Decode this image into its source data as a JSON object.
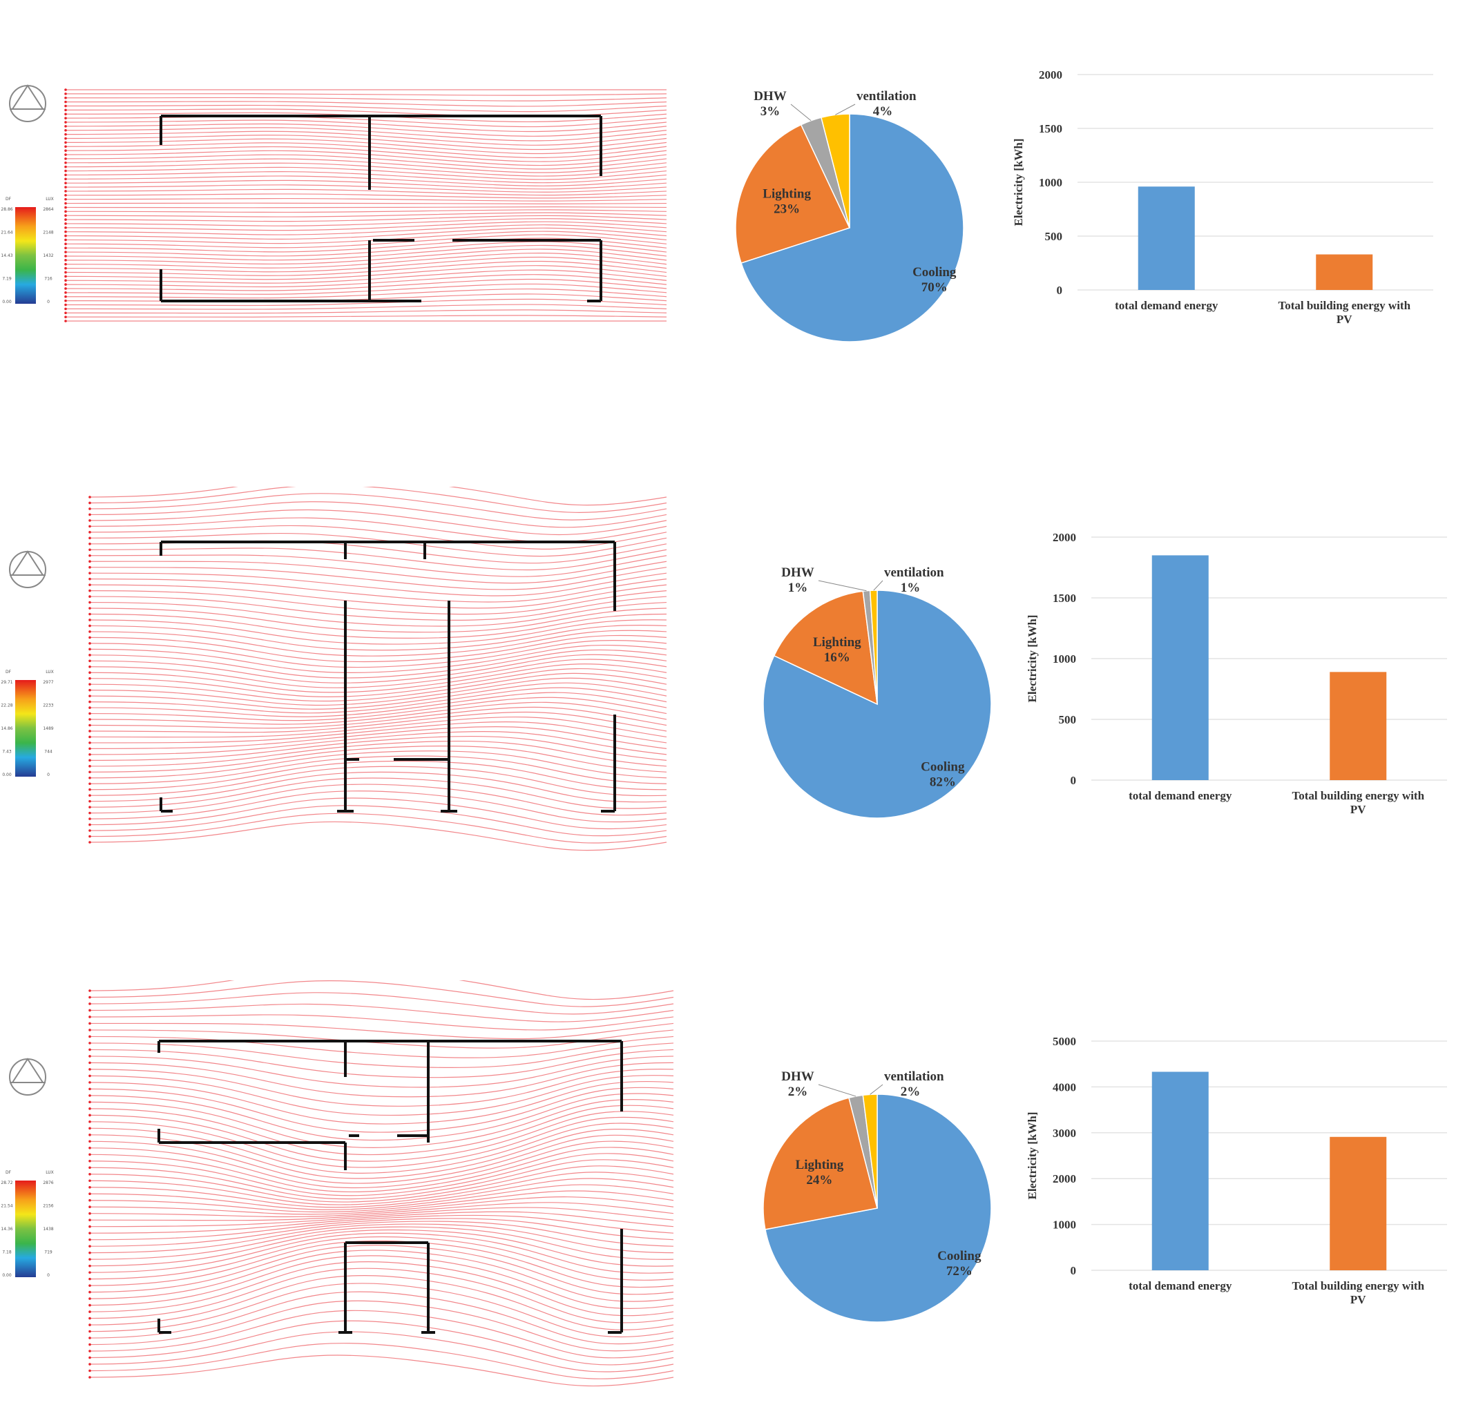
{
  "colors": {
    "cooling": "#5b9bd5",
    "lighting": "#ed7d31",
    "dhw": "#a5a5a5",
    "ventilation": "#ffc000",
    "bar_demand": "#5b9bd5",
    "bar_pv": "#ed7d31",
    "stream": "#e8232a",
    "wall": "#111111",
    "grid": "#e3e3e3"
  },
  "icons": [
    "compass-north-icon",
    "daylight-factor-color-scale"
  ],
  "rows": [
    {
      "scale": {
        "head_left": "DF",
        "head_right": "LUX",
        "left": [
          "28.86",
          "21.64",
          "14.43",
          "7.19",
          "0.00"
        ],
        "right": [
          "2864",
          "2148",
          "1432",
          "716",
          "0"
        ]
      },
      "pie": {
        "type": "pie",
        "slices": [
          {
            "name": "Cooling",
            "value": 70,
            "label": "70%"
          },
          {
            "name": "Lighting",
            "value": 23,
            "label": "23%"
          },
          {
            "name": "DHW",
            "value": 3,
            "label": "3%"
          },
          {
            "name": "ventilation",
            "value": 4,
            "label": "4%"
          }
        ]
      },
      "bar": {
        "type": "bar",
        "categories": [
          "total demand energy",
          "Total building energy with PV"
        ],
        "values": [
          960,
          330
        ],
        "ylabel": "Electricity [kWh]",
        "ylim": [
          0,
          2000
        ],
        "yticks": [
          0,
          500,
          1000,
          1500,
          2000
        ]
      }
    },
    {
      "scale": {
        "head_left": "DF",
        "head_right": "LUX",
        "left": [
          "29.71",
          "22.28",
          "14.86",
          "7.43",
          "0.00"
        ],
        "right": [
          "2977",
          "2233",
          "1489",
          "744",
          "0"
        ]
      },
      "pie": {
        "type": "pie",
        "slices": [
          {
            "name": "Cooling",
            "value": 82,
            "label": "82%"
          },
          {
            "name": "Lighting",
            "value": 16,
            "label": "16%"
          },
          {
            "name": "DHW",
            "value": 1,
            "label": "1%"
          },
          {
            "name": "ventilation",
            "value": 1,
            "label": "1%"
          }
        ]
      },
      "bar": {
        "type": "bar",
        "categories": [
          "total demand energy",
          "Total building energy with PV"
        ],
        "values": [
          1850,
          890
        ],
        "ylabel": "Electricity [kWh]",
        "ylim": [
          0,
          2000
        ],
        "yticks": [
          0,
          500,
          1000,
          1500,
          2000
        ]
      }
    },
    {
      "scale": {
        "head_left": "DF",
        "head_right": "LUX",
        "left": [
          "28.72",
          "21.54",
          "14.36",
          "7.18",
          "0.00"
        ],
        "right": [
          "2876",
          "2156",
          "1438",
          "719",
          "0"
        ]
      },
      "pie": {
        "type": "pie",
        "slices": [
          {
            "name": "Cooling",
            "value": 72,
            "label": "72%"
          },
          {
            "name": "Lighting",
            "value": 24,
            "label": "24%"
          },
          {
            "name": "DHW",
            "value": 2,
            "label": "2%"
          },
          {
            "name": "ventilation",
            "value": 2,
            "label": "2%"
          }
        ]
      },
      "bar": {
        "type": "bar",
        "categories": [
          "total demand energy",
          "Total building energy with PV"
        ],
        "values": [
          4330,
          2910
        ],
        "ylabel": "Electricity [kWh]",
        "ylim": [
          0,
          5000
        ],
        "yticks": [
          0,
          1000,
          2000,
          3000,
          4000,
          5000
        ]
      }
    }
  ],
  "chart_data": [
    {
      "type": "pie",
      "slices": [
        {
          "name": "Cooling",
          "value": 70
        },
        {
          "name": "Lighting",
          "value": 23
        },
        {
          "name": "DHW",
          "value": 3
        },
        {
          "name": "ventilation",
          "value": 4
        }
      ]
    },
    {
      "type": "bar",
      "categories": [
        "total demand energy",
        "Total building energy with PV"
      ],
      "values": [
        960,
        330
      ],
      "ylabel": "Electricity [kWh]",
      "ylim": [
        0,
        2000
      ]
    },
    {
      "type": "pie",
      "slices": [
        {
          "name": "Cooling",
          "value": 82
        },
        {
          "name": "Lighting",
          "value": 16
        },
        {
          "name": "DHW",
          "value": 1
        },
        {
          "name": "ventilation",
          "value": 1
        }
      ]
    },
    {
      "type": "bar",
      "categories": [
        "total demand energy",
        "Total building energy with PV"
      ],
      "values": [
        1850,
        890
      ],
      "ylabel": "Electricity [kWh]",
      "ylim": [
        0,
        2000
      ]
    },
    {
      "type": "pie",
      "slices": [
        {
          "name": "Cooling",
          "value": 72
        },
        {
          "name": "Lighting",
          "value": 24
        },
        {
          "name": "DHW",
          "value": 2
        },
        {
          "name": "ventilation",
          "value": 2
        }
      ]
    },
    {
      "type": "bar",
      "categories": [
        "total demand energy",
        "Total building energy with PV"
      ],
      "values": [
        4330,
        2910
      ],
      "ylabel": "Electricity [kWh]",
      "ylim": [
        0,
        5000
      ]
    }
  ]
}
